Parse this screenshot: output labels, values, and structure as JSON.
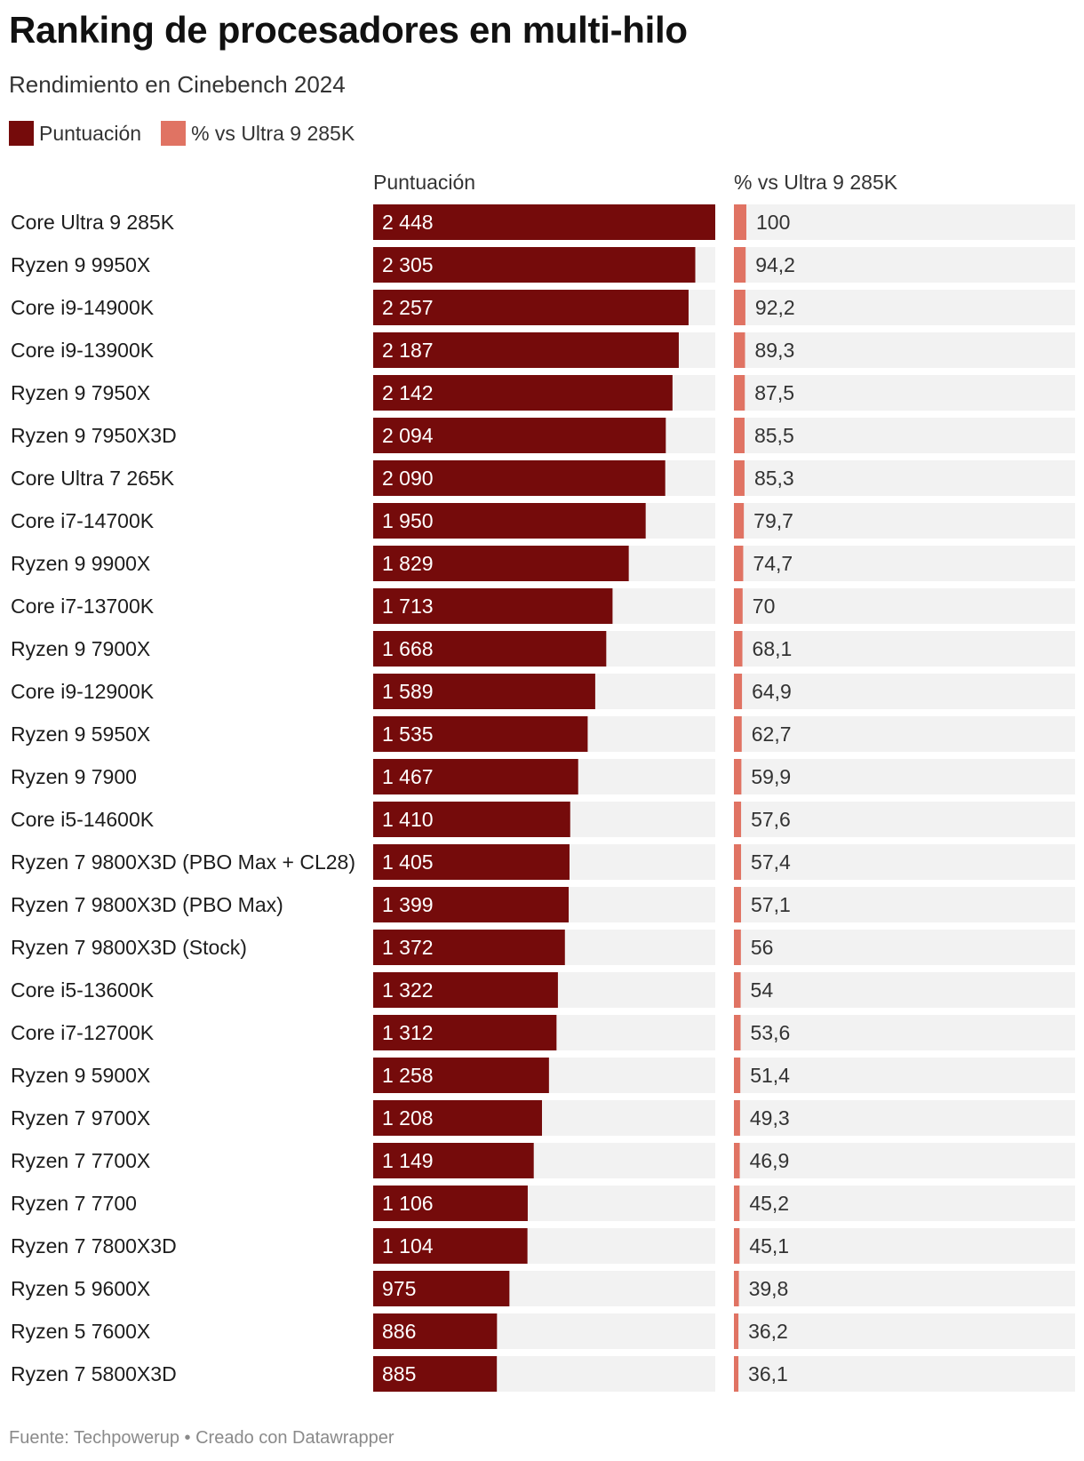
{
  "title": "Ranking de procesadores en multi-hilo",
  "subtitle": "Rendimiento en Cinebench 2024",
  "legend": [
    {
      "label": "Puntuación",
      "color": "#750b0b"
    },
    {
      "label": "% vs Ultra 9 285K",
      "color": "#e07363"
    }
  ],
  "columns": {
    "score": "Puntuación",
    "pct": "% vs Ultra 9 285K"
  },
  "footer": "Fuente: Techpowerup • Creado con Datawrapper",
  "colors": {
    "score_bar": "#750b0b",
    "pct_bar": "#e07363",
    "track": "#f2f2f2",
    "score_label": "#ffffff",
    "pct_label": "#333333"
  },
  "chart_data": {
    "type": "bar",
    "orientation": "horizontal",
    "title": "Ranking de procesadores en multi-hilo",
    "subtitle": "Rendimiento en Cinebench 2024",
    "score_max": 2448,
    "pct_max": 100,
    "categories": [
      "Core Ultra 9 285K",
      "Ryzen 9 9950X",
      "Core i9-14900K",
      "Core i9-13900K",
      "Ryzen 9 7950X",
      "Ryzen 9 7950X3D",
      "Core Ultra 7 265K",
      "Core i7-14700K",
      "Ryzen 9 9900X",
      "Core i7-13700K",
      "Ryzen 9 7900X",
      "Core i9-12900K",
      "Ryzen 9 5950X",
      "Ryzen 9 7900",
      "Core i5-14600K",
      "Ryzen 7 9800X3D (PBO Max + CL28)",
      "Ryzen 7 9800X3D (PBO Max)",
      "Ryzen 7 9800X3D (Stock)",
      "Core i5-13600K",
      "Core i7-12700K",
      "Ryzen 9 5900X",
      "Ryzen 7 9700X",
      "Ryzen 7 7700X",
      "Ryzen 7 7700",
      "Ryzen 7 7800X3D",
      "Ryzen 5 9600X",
      "Ryzen 5 7600X",
      "Ryzen 7 5800X3D"
    ],
    "series": [
      {
        "name": "Puntuación",
        "values": [
          2448,
          2305,
          2257,
          2187,
          2142,
          2094,
          2090,
          1950,
          1829,
          1713,
          1668,
          1589,
          1535,
          1467,
          1410,
          1405,
          1399,
          1372,
          1322,
          1312,
          1258,
          1208,
          1149,
          1106,
          1104,
          975,
          886,
          885
        ],
        "labels": [
          "2 448",
          "2 305",
          "2 257",
          "2 187",
          "2 142",
          "2 094",
          "2 090",
          "1 950",
          "1 829",
          "1 713",
          "1 668",
          "1 589",
          "1 535",
          "1 467",
          "1 410",
          "1 405",
          "1 399",
          "1 372",
          "1 322",
          "1 312",
          "1 258",
          "1 208",
          "1 149",
          "1 106",
          "1 104",
          "975",
          "886",
          "885"
        ]
      },
      {
        "name": "% vs Ultra 9 285K",
        "values": [
          100,
          94.2,
          92.2,
          89.3,
          87.5,
          85.5,
          85.3,
          79.7,
          74.7,
          70,
          68.1,
          64.9,
          62.7,
          59.9,
          57.6,
          57.4,
          57.1,
          56,
          54,
          53.6,
          51.4,
          49.3,
          46.9,
          45.2,
          45.1,
          39.8,
          36.2,
          36.1
        ],
        "labels": [
          "100",
          "94,2",
          "92,2",
          "89,3",
          "87,5",
          "85,5",
          "85,3",
          "79,7",
          "74,7",
          "70",
          "68,1",
          "64,9",
          "62,7",
          "59,9",
          "57,6",
          "57,4",
          "57,1",
          "56",
          "54",
          "53,6",
          "51,4",
          "49,3",
          "46,9",
          "45,2",
          "45,1",
          "39,8",
          "36,2",
          "36,1"
        ]
      }
    ]
  }
}
